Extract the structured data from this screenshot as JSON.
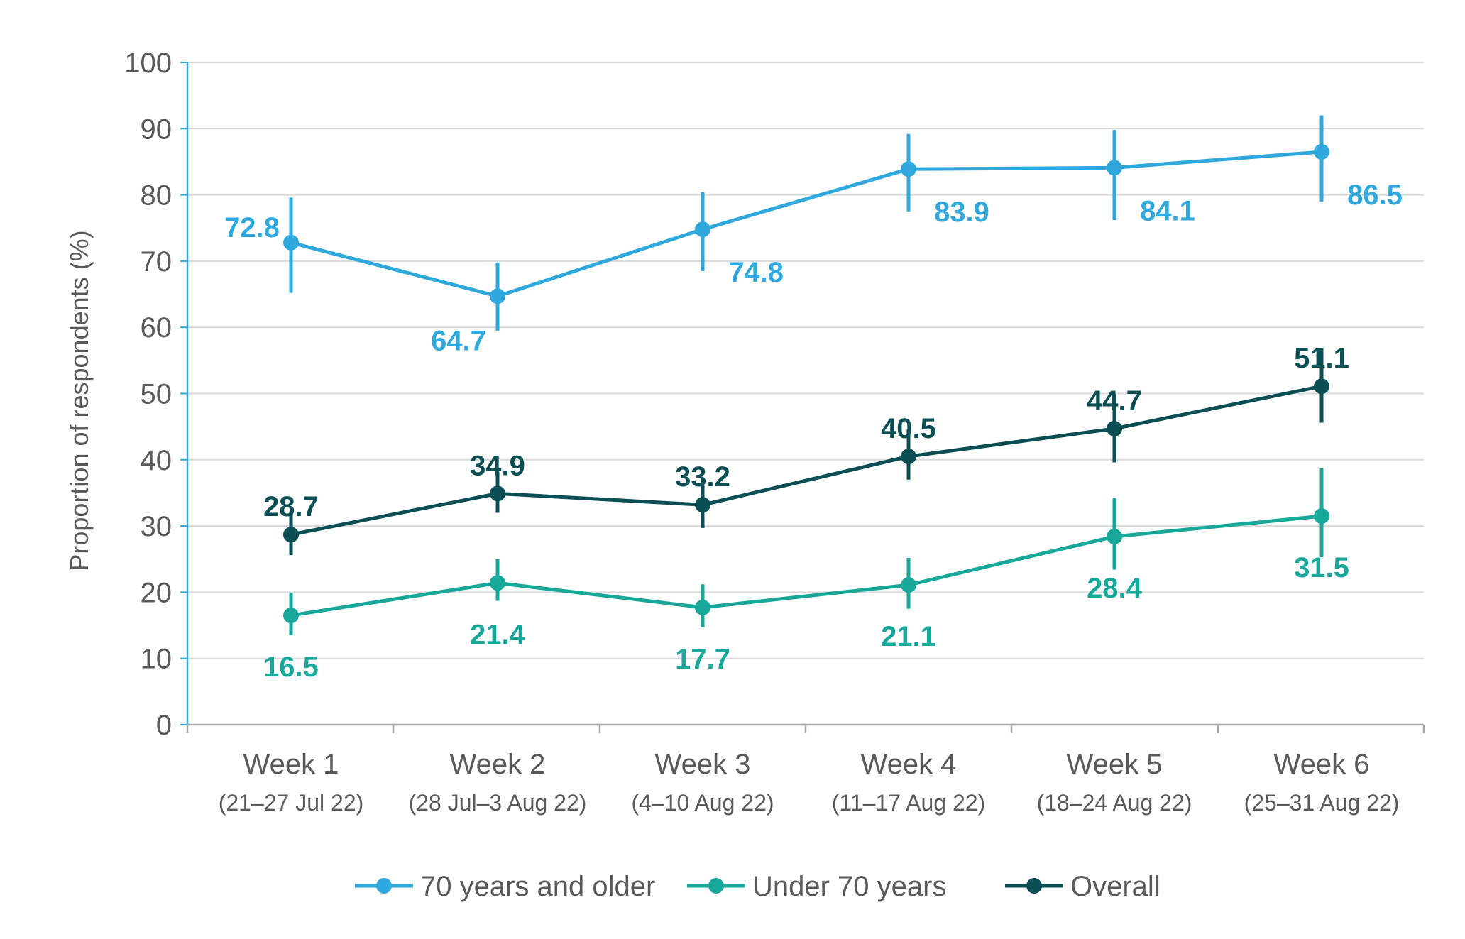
{
  "chart_data": {
    "type": "line",
    "title": "",
    "xlabel": "",
    "ylabel": "Proportion of respondents (%)",
    "ylim": [
      0,
      100
    ],
    "yticks": [
      0,
      10,
      20,
      30,
      40,
      50,
      60,
      70,
      80,
      90,
      100
    ],
    "grid": true,
    "legend_position": "bottom",
    "categories": [
      {
        "label": "Week 1",
        "sub": "(21–27 Jul 22)"
      },
      {
        "label": "Week 2",
        "sub": "(28 Jul–3 Aug 22)"
      },
      {
        "label": "Week 3",
        "sub": "(4–10 Aug 22)"
      },
      {
        "label": "Week 4",
        "sub": "(11–17 Aug 22)"
      },
      {
        "label": "Week 5",
        "sub": "(18–24 Aug 22)"
      },
      {
        "label": "Week 6",
        "sub": "(25–31 Aug 22)"
      }
    ],
    "series": [
      {
        "name": "70 years and older",
        "color": "#2fa8de",
        "values": [
          72.8,
          64.7,
          74.8,
          83.9,
          84.1,
          86.5
        ],
        "labels": [
          "72.8",
          "64.7",
          "74.8",
          "83.9",
          "84.1",
          "86.5"
        ],
        "error_low": [
          65.2,
          59.5,
          68.5,
          77.5,
          76.2,
          79.0
        ],
        "error_high": [
          79.6,
          69.8,
          80.4,
          89.2,
          89.8,
          92.0
        ],
        "label_pos": [
          "left",
          "below-left",
          "below-right",
          "below-right",
          "below-right",
          "below-right"
        ]
      },
      {
        "name": "Under 70 years",
        "color": "#17a89a",
        "values": [
          16.5,
          21.4,
          17.7,
          21.1,
          28.4,
          31.5
        ],
        "labels": [
          "16.5",
          "21.4",
          "17.7",
          "21.1",
          "28.4",
          "31.5"
        ],
        "error_low": [
          13.5,
          18.7,
          14.7,
          17.5,
          23.4,
          25.3
        ],
        "error_high": [
          19.9,
          25.0,
          21.2,
          25.2,
          34.2,
          38.7
        ],
        "label_pos": [
          "below",
          "below",
          "below",
          "below",
          "below",
          "below"
        ]
      },
      {
        "name": "Overall",
        "color": "#0b4f55",
        "values": [
          28.7,
          34.9,
          33.2,
          40.5,
          44.7,
          51.1
        ],
        "labels": [
          "28.7",
          "34.9",
          "33.2",
          "40.5",
          "44.7",
          "51.1"
        ],
        "error_low": [
          25.6,
          32.0,
          29.7,
          37.0,
          39.6,
          45.6
        ],
        "error_high": [
          32.2,
          38.2,
          37.0,
          44.6,
          49.9,
          56.9
        ],
        "label_pos": [
          "above",
          "above",
          "above",
          "above",
          "above",
          "above"
        ]
      }
    ]
  }
}
